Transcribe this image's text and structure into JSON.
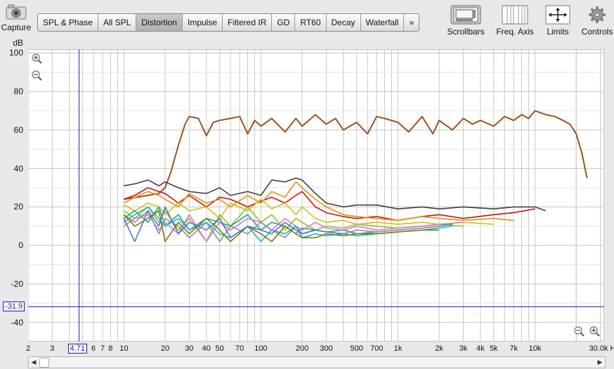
{
  "toolbar": {
    "capture_label": "Capture",
    "tabs": [
      {
        "label": "SPL & Phase"
      },
      {
        "label": "All SPL"
      },
      {
        "label": "Distortion",
        "active": true
      },
      {
        "label": "Impulse"
      },
      {
        "label": "Filtered IR"
      },
      {
        "label": "GD"
      },
      {
        "label": "RT60"
      },
      {
        "label": "Decay"
      },
      {
        "label": "Waterfall"
      },
      {
        "label": "»"
      }
    ],
    "tools": [
      {
        "label": "Scrollbars",
        "icon": "scrollbars-icon"
      },
      {
        "label": "Freq. Axis",
        "icon": "freq-axis-icon"
      },
      {
        "label": "Limits",
        "icon": "limits-icon"
      },
      {
        "label": "Controls",
        "icon": "gear-icon"
      }
    ]
  },
  "cursor": {
    "db_readout": "-31.9",
    "freq_readout": "4.71"
  },
  "chart_data": {
    "type": "line",
    "title": "",
    "xlabel": "",
    "ylabel": "dB",
    "x_scale": "log",
    "xlim": [
      2,
      32000
    ],
    "ylim": [
      -50,
      102
    ],
    "y_ticks": [
      "100",
      "80",
      "60",
      "40",
      "20",
      "0",
      "-20",
      "-40"
    ],
    "y_tick_values": [
      100,
      80,
      60,
      40,
      20,
      0,
      -20,
      -40
    ],
    "x_ticks": [
      "2",
      "3",
      "",
      "6",
      "7",
      "8",
      "10",
      "20",
      "30",
      "40",
      "50",
      "70",
      "100",
      "200",
      "300",
      "500",
      "700",
      "1k",
      "2k",
      "3k",
      "4k",
      "5k",
      "7k",
      "10k",
      "30.0k Hz"
    ],
    "x_tick_values": [
      2,
      3,
      4.71,
      6,
      7,
      8,
      10,
      20,
      30,
      40,
      50,
      70,
      100,
      200,
      300,
      500,
      700,
      1000,
      2000,
      3000,
      4000,
      5000,
      7000,
      10000,
      30000
    ],
    "grid": true,
    "series": [
      {
        "color": "#a0521c",
        "x": [
          10,
          15,
          18,
          20,
          22,
          25,
          28,
          30,
          35,
          40,
          45,
          50,
          60,
          70,
          80,
          90,
          100,
          120,
          150,
          180,
          200,
          250,
          300,
          350,
          400,
          500,
          600,
          700,
          800,
          1000,
          1200,
          1500,
          1800,
          2000,
          2500,
          3000,
          3500,
          4000,
          5000,
          6000,
          7000,
          8000,
          9000,
          10000,
          12000,
          14000,
          16000,
          18000,
          20000,
          22000,
          24000
        ],
        "y": [
          24,
          26,
          27,
          30,
          38,
          52,
          63,
          67,
          66,
          57,
          64,
          65,
          66,
          67,
          58,
          65,
          62,
          66,
          59,
          66,
          62,
          68,
          63,
          66,
          60,
          64,
          58,
          67,
          66,
          64,
          59,
          67,
          58,
          65,
          60,
          66,
          63,
          65,
          62,
          67,
          65,
          68,
          66,
          70,
          68,
          67,
          65,
          63,
          58,
          48,
          35
        ]
      },
      {
        "color": "#404040",
        "x": [
          10,
          12,
          15,
          18,
          20,
          25,
          30,
          40,
          50,
          60,
          80,
          100,
          120,
          150,
          180,
          200,
          250,
          300,
          400,
          500,
          700,
          1000,
          1500,
          2000,
          3000,
          5000,
          7000,
          10000,
          12000
        ],
        "y": [
          31,
          32,
          34,
          31,
          33,
          30,
          28,
          27,
          30,
          26,
          28,
          26,
          34,
          33,
          35,
          34,
          27,
          22,
          20,
          21,
          21,
          19,
          20,
          19,
          20,
          19,
          20,
          20,
          18
        ]
      },
      {
        "color": "#cc1010",
        "x": [
          10,
          12,
          15,
          18,
          20,
          25,
          30,
          40,
          50,
          60,
          80,
          100,
          120,
          150,
          180,
          200,
          250,
          300,
          400,
          500,
          700,
          1000,
          1500,
          2000,
          3000,
          5000,
          7000,
          10000
        ],
        "y": [
          24,
          26,
          30,
          28,
          27,
          22,
          26,
          20,
          25,
          24,
          20,
          23,
          25,
          22,
          26,
          28,
          20,
          17,
          15,
          14,
          15,
          13,
          15,
          16,
          14,
          16,
          17,
          19
        ]
      },
      {
        "color": "#e8900a",
        "x": [
          10,
          12,
          15,
          18,
          20,
          25,
          30,
          40,
          50,
          60,
          80,
          100,
          120,
          150,
          180,
          200,
          250,
          300,
          400,
          500,
          700,
          1000,
          1500,
          2000,
          3000,
          5000,
          7000
        ],
        "y": [
          22,
          25,
          28,
          26,
          24,
          20,
          27,
          22,
          24,
          20,
          26,
          22,
          28,
          25,
          33,
          30,
          24,
          20,
          16,
          15,
          14,
          13,
          15,
          14,
          13,
          14,
          13
        ]
      },
      {
        "color": "#d4c010",
        "x": [
          10,
          12,
          15,
          18,
          20,
          25,
          30,
          40,
          50,
          60,
          80,
          100,
          120,
          150,
          180,
          200,
          250,
          300,
          400,
          500,
          700,
          1000,
          1500,
          2000,
          3000,
          5000
        ],
        "y": [
          21,
          18,
          22,
          20,
          16,
          22,
          18,
          20,
          14,
          22,
          18,
          24,
          19,
          22,
          16,
          20,
          14,
          12,
          13,
          11,
          12,
          11,
          12,
          11,
          12,
          11
        ]
      },
      {
        "color": "#90c020",
        "x": [
          10,
          12,
          15,
          18,
          20,
          25,
          30,
          40,
          50,
          60,
          80,
          100,
          120,
          150,
          180,
          200,
          250,
          300,
          400,
          500,
          700,
          1000,
          1500,
          2000,
          3000
        ],
        "y": [
          18,
          14,
          20,
          12,
          18,
          8,
          14,
          2,
          16,
          10,
          20,
          12,
          16,
          8,
          14,
          12,
          8,
          10,
          9,
          11,
          10,
          9,
          10,
          11,
          10
        ]
      },
      {
        "color": "#1fa88a",
        "x": [
          10,
          12,
          15,
          18,
          20,
          25,
          30,
          40,
          50,
          60,
          80,
          100,
          120,
          150,
          180,
          200,
          250,
          300,
          400,
          500,
          700,
          1000,
          1500,
          2000,
          2500
        ],
        "y": [
          14,
          18,
          12,
          20,
          10,
          16,
          8,
          14,
          12,
          10,
          16,
          8,
          12,
          10,
          6,
          9,
          8,
          7,
          8,
          6,
          7,
          8,
          9,
          10,
          11
        ]
      },
      {
        "color": "#e070e0",
        "x": [
          10,
          12,
          15,
          18,
          20,
          25,
          30,
          40,
          50,
          60,
          80,
          100,
          120,
          150,
          180,
          200,
          250,
          300,
          400,
          500,
          700,
          1000,
          1500,
          2000,
          3000
        ],
        "y": [
          10,
          14,
          16,
          8,
          12,
          6,
          16,
          2,
          12,
          8,
          14,
          12,
          8,
          14,
          10,
          8,
          12,
          9,
          8,
          10,
          8,
          9,
          10,
          11,
          12
        ]
      },
      {
        "color": "#909090",
        "x": [
          10,
          12,
          15,
          18,
          20,
          25,
          30,
          40,
          50,
          60,
          80,
          100,
          120,
          150,
          180,
          200,
          250,
          300,
          400,
          500,
          700,
          1000,
          1500,
          2000
        ],
        "y": [
          16,
          12,
          18,
          6,
          14,
          10,
          4,
          12,
          2,
          10,
          6,
          12,
          8,
          4,
          10,
          6,
          8,
          7,
          6,
          8,
          7,
          8,
          9,
          10
        ]
      },
      {
        "color": "#20b8c8",
        "x": [
          10,
          12,
          15,
          18,
          20,
          25,
          30,
          40,
          50,
          60,
          80,
          100,
          120,
          150,
          180,
          200,
          250,
          300,
          400,
          500,
          700,
          1000,
          1500,
          2000,
          2500
        ],
        "y": [
          12,
          16,
          20,
          14,
          10,
          14,
          8,
          12,
          6,
          4,
          10,
          2,
          8,
          6,
          10,
          4,
          6,
          5,
          6,
          5,
          6,
          7,
          8,
          9,
          10
        ]
      },
      {
        "color": "#7a7a10",
        "x": [
          10,
          12,
          15,
          18,
          20,
          25,
          30,
          40,
          50,
          60,
          80,
          100,
          120,
          150,
          180,
          200,
          250,
          300,
          400,
          500,
          700,
          1000,
          1500,
          2000
        ],
        "y": [
          16,
          10,
          14,
          18,
          2,
          12,
          6,
          14,
          8,
          2,
          10,
          6,
          2,
          10,
          6,
          4,
          4,
          6,
          5,
          6,
          6,
          7,
          8,
          8
        ]
      },
      {
        "color": "#4a78d0",
        "x": [
          10,
          12,
          15,
          18,
          20,
          25,
          30,
          40,
          50,
          60,
          80,
          100,
          120,
          150,
          180,
          200,
          250,
          300,
          400
        ],
        "y": [
          14,
          2,
          18,
          10,
          20,
          6,
          12,
          8,
          14,
          4,
          10,
          8,
          6,
          12,
          8,
          6,
          8,
          7,
          6
        ]
      }
    ]
  }
}
